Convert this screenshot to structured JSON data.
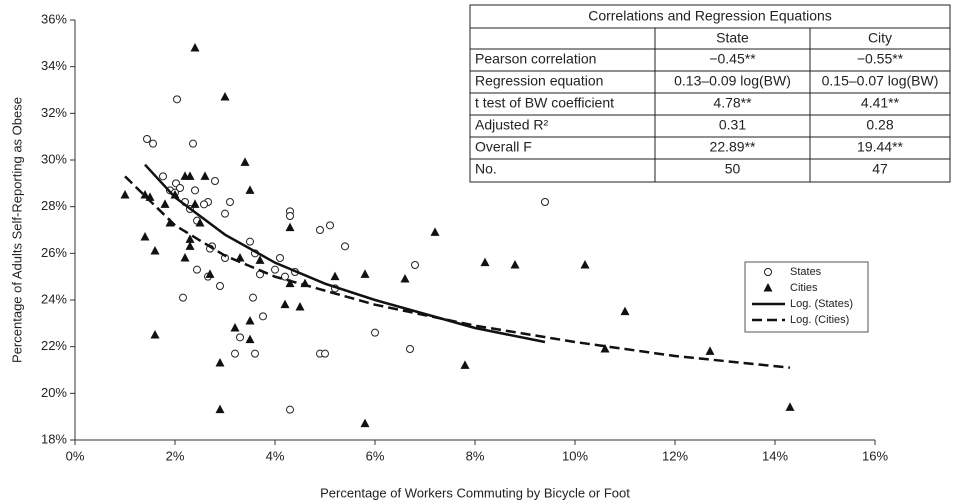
{
  "chart_data": {
    "type": "scatter",
    "xlabel": "Percentage of Workers Commuting by Bicycle or Foot",
    "ylabel": "Percentage of Adults  Self-Reporting as Obese",
    "xlim": [
      0,
      16
    ],
    "xticks": [
      {
        "value": 0,
        "label": "0%"
      },
      {
        "value": 2,
        "label": "2%"
      },
      {
        "value": 4,
        "label": "4%"
      },
      {
        "value": 6,
        "label": "6%"
      },
      {
        "value": 8,
        "label": "8%"
      },
      {
        "value": 10,
        "label": "10%"
      },
      {
        "value": 12,
        "label": "12%"
      },
      {
        "value": 14,
        "label": "14%"
      },
      {
        "value": 16,
        "label": "16%"
      }
    ],
    "ylim": [
      18,
      36
    ],
    "yticks": [
      {
        "value": 18,
        "label": "18%"
      },
      {
        "value": 20,
        "label": "20%"
      },
      {
        "value": 22,
        "label": "22%"
      },
      {
        "value": 24,
        "label": "24%"
      },
      {
        "value": 26,
        "label": "26%"
      },
      {
        "value": 28,
        "label": "28%"
      },
      {
        "value": 30,
        "label": "30%"
      },
      {
        "value": 32,
        "label": "32%"
      },
      {
        "value": 34,
        "label": "34%"
      },
      {
        "value": 36,
        "label": "36%"
      }
    ],
    "grid": false,
    "legend": "right",
    "series": [
      {
        "name": "States",
        "type": "scatter",
        "marker": "circle",
        "color": "#222222",
        "x": [
          1.44,
          1.56,
          2.04,
          2.36,
          2.8,
          1.76,
          2.02,
          2.1,
          1.9,
          2.0,
          2.2,
          2.4,
          2.66,
          2.58,
          2.3,
          3.0,
          3.1,
          2.44,
          2.74,
          2.7,
          2.16,
          2.44,
          2.66,
          2.9,
          3.0,
          3.5,
          3.6,
          3.7,
          3.56,
          3.3,
          3.2,
          3.6,
          3.76,
          4.0,
          4.2,
          4.1,
          4.3,
          4.3,
          4.4,
          4.3,
          4.9,
          5.1,
          5.4,
          4.9,
          5.0,
          5.2,
          6.0,
          6.8,
          6.7,
          9.4
        ],
        "values": [
          30.9,
          30.7,
          32.6,
          30.7,
          29.1,
          29.3,
          29.0,
          28.8,
          28.7,
          28.6,
          28.2,
          28.7,
          28.2,
          28.1,
          27.9,
          27.7,
          28.2,
          27.4,
          26.3,
          26.2,
          24.1,
          25.3,
          25.0,
          24.6,
          25.8,
          26.5,
          26.0,
          25.1,
          24.1,
          22.4,
          21.7,
          21.7,
          23.3,
          25.3,
          25.0,
          25.8,
          27.8,
          27.6,
          25.2,
          19.3,
          27.0,
          27.2,
          26.3,
          21.7,
          21.7,
          24.5,
          22.6,
          25.5,
          21.9,
          28.2
        ]
      },
      {
        "name": "Cities",
        "type": "scatter",
        "marker": "triangle",
        "color": "#111111",
        "x": [
          1.0,
          1.4,
          1.4,
          1.6,
          1.6,
          1.5,
          1.8,
          1.9,
          2.3,
          2.4,
          2.2,
          2.4,
          2.3,
          2.3,
          2.2,
          2.6,
          2.5,
          2.7,
          2.9,
          2.9,
          3.0,
          3.2,
          3.3,
          3.4,
          3.5,
          3.5,
          3.5,
          4.2,
          4.3,
          4.3,
          4.5,
          4.6,
          5.2,
          5.8,
          5.8,
          6.6,
          7.2,
          7.8,
          8.2,
          8.8,
          10.2,
          10.6,
          11.0,
          12.7,
          14.3,
          2.0,
          3.7
        ],
        "values": [
          28.5,
          28.5,
          26.7,
          26.1,
          22.5,
          28.4,
          28.1,
          27.3,
          29.3,
          34.8,
          29.3,
          28.1,
          26.6,
          26.3,
          25.8,
          29.3,
          27.3,
          25.1,
          19.3,
          21.3,
          32.7,
          22.8,
          25.8,
          29.9,
          28.7,
          22.3,
          23.1,
          23.8,
          27.1,
          24.7,
          23.7,
          24.7,
          25.0,
          25.1,
          18.7,
          24.9,
          26.9,
          21.2,
          25.6,
          25.5,
          25.5,
          21.9,
          23.5,
          21.8,
          19.4,
          28.5,
          25.7
        ]
      },
      {
        "name": "Log. (States)",
        "type": "line",
        "dash": "solid",
        "color": "#111111",
        "x": [
          1.4,
          2,
          3,
          4,
          5,
          6,
          7,
          8,
          9.4
        ],
        "values": [
          29.8,
          28.4,
          26.8,
          25.6,
          24.7,
          24.0,
          23.4,
          22.8,
          22.2
        ]
      },
      {
        "name": "Log. (Cities)",
        "type": "line",
        "dash": "dashed",
        "color": "#111111",
        "x": [
          1,
          2,
          3,
          4,
          6,
          8,
          10,
          12,
          14.3
        ],
        "values": [
          29.3,
          27.2,
          25.9,
          25.0,
          23.8,
          22.9,
          22.2,
          21.6,
          21.1
        ]
      }
    ]
  },
  "table": {
    "title": "Correlations and Regression Equations",
    "columns": [
      "State",
      "City"
    ],
    "rows": [
      [
        "Pearson correlation",
        "−0.45**",
        "−0.55**"
      ],
      [
        "Regression equation",
        "0.13–0.09 log(BW)",
        "0.15–0.07 log(BW)"
      ],
      [
        "t test of BW coefficient",
        "4.78**",
        "4.41**"
      ],
      [
        "Adjusted R²",
        "0.31",
        "0.28"
      ],
      [
        "Overall F",
        "22.89**",
        "19.44**"
      ],
      [
        "No.",
        "50",
        "47"
      ]
    ]
  }
}
